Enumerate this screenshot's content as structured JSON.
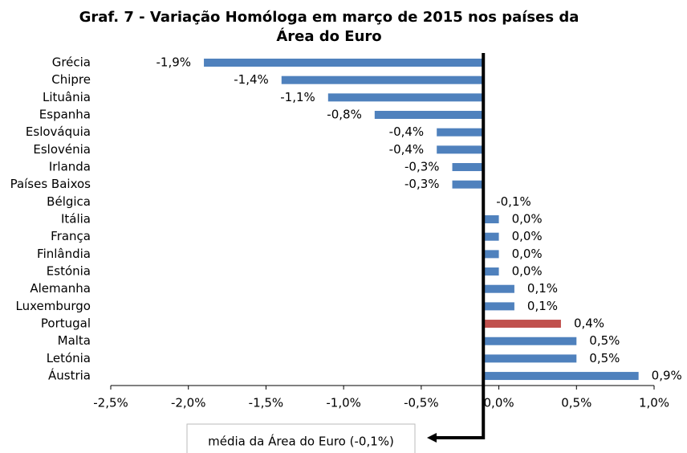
{
  "chart_data": {
    "type": "bar",
    "orientation": "horizontal",
    "title": "Graf. 7 - Variação Homóloga em março de 2015 nos países da",
    "title_line2": "Área do Euro",
    "categories": [
      "Grécia",
      "Chipre",
      "Lituânia",
      "Espanha",
      "Eslováquia",
      "Eslovénia",
      "Irlanda",
      "Países Baixos",
      "Bélgica",
      "Itália",
      "França",
      "Finlândia",
      "Estónia",
      "Alemanha",
      "Luxemburgo",
      "Portugal",
      "Malta",
      "Letónia",
      "Áustria"
    ],
    "values": [
      -1.9,
      -1.4,
      -1.1,
      -0.8,
      -0.4,
      -0.4,
      -0.3,
      -0.3,
      -0.1,
      0.0,
      0.0,
      0.0,
      0.0,
      0.1,
      0.1,
      0.4,
      0.5,
      0.5,
      0.9
    ],
    "value_labels": [
      "-1,9%",
      "-1,4%",
      "-1,1%",
      "-0,8%",
      "-0,4%",
      "-0,4%",
      "-0,3%",
      "-0,3%",
      "-0,1%",
      "0,0%",
      "0,0%",
      "0,0%",
      "0,0%",
      "0,1%",
      "0,1%",
      "0,4%",
      "0,5%",
      "0,5%",
      "0,9%"
    ],
    "colors": [
      "#4f81bd",
      "#4f81bd",
      "#4f81bd",
      "#4f81bd",
      "#4f81bd",
      "#4f81bd",
      "#4f81bd",
      "#4f81bd",
      "#4f81bd",
      "#4f81bd",
      "#4f81bd",
      "#4f81bd",
      "#4f81bd",
      "#4f81bd",
      "#4f81bd",
      "#c0504d",
      "#4f81bd",
      "#4f81bd",
      "#4f81bd"
    ],
    "xlim": [
      -2.5,
      1.0
    ],
    "xticks": [
      {
        "value": -2.5,
        "label": "-2,5%"
      },
      {
        "value": -2.0,
        "label": "-2,0%"
      },
      {
        "value": -1.5,
        "label": "-1,5%"
      },
      {
        "value": -1.0,
        "label": "-1,0%"
      },
      {
        "value": -0.5,
        "label": "-0,5%"
      },
      {
        "value": 0.0,
        "label": "0,0%"
      },
      {
        "value": 0.5,
        "label": "0,5%"
      },
      {
        "value": 1.0,
        "label": "1,0%"
      }
    ],
    "reference_line": {
      "value": -0.1,
      "label": "média da Área do Euro (-0,1%)"
    }
  }
}
